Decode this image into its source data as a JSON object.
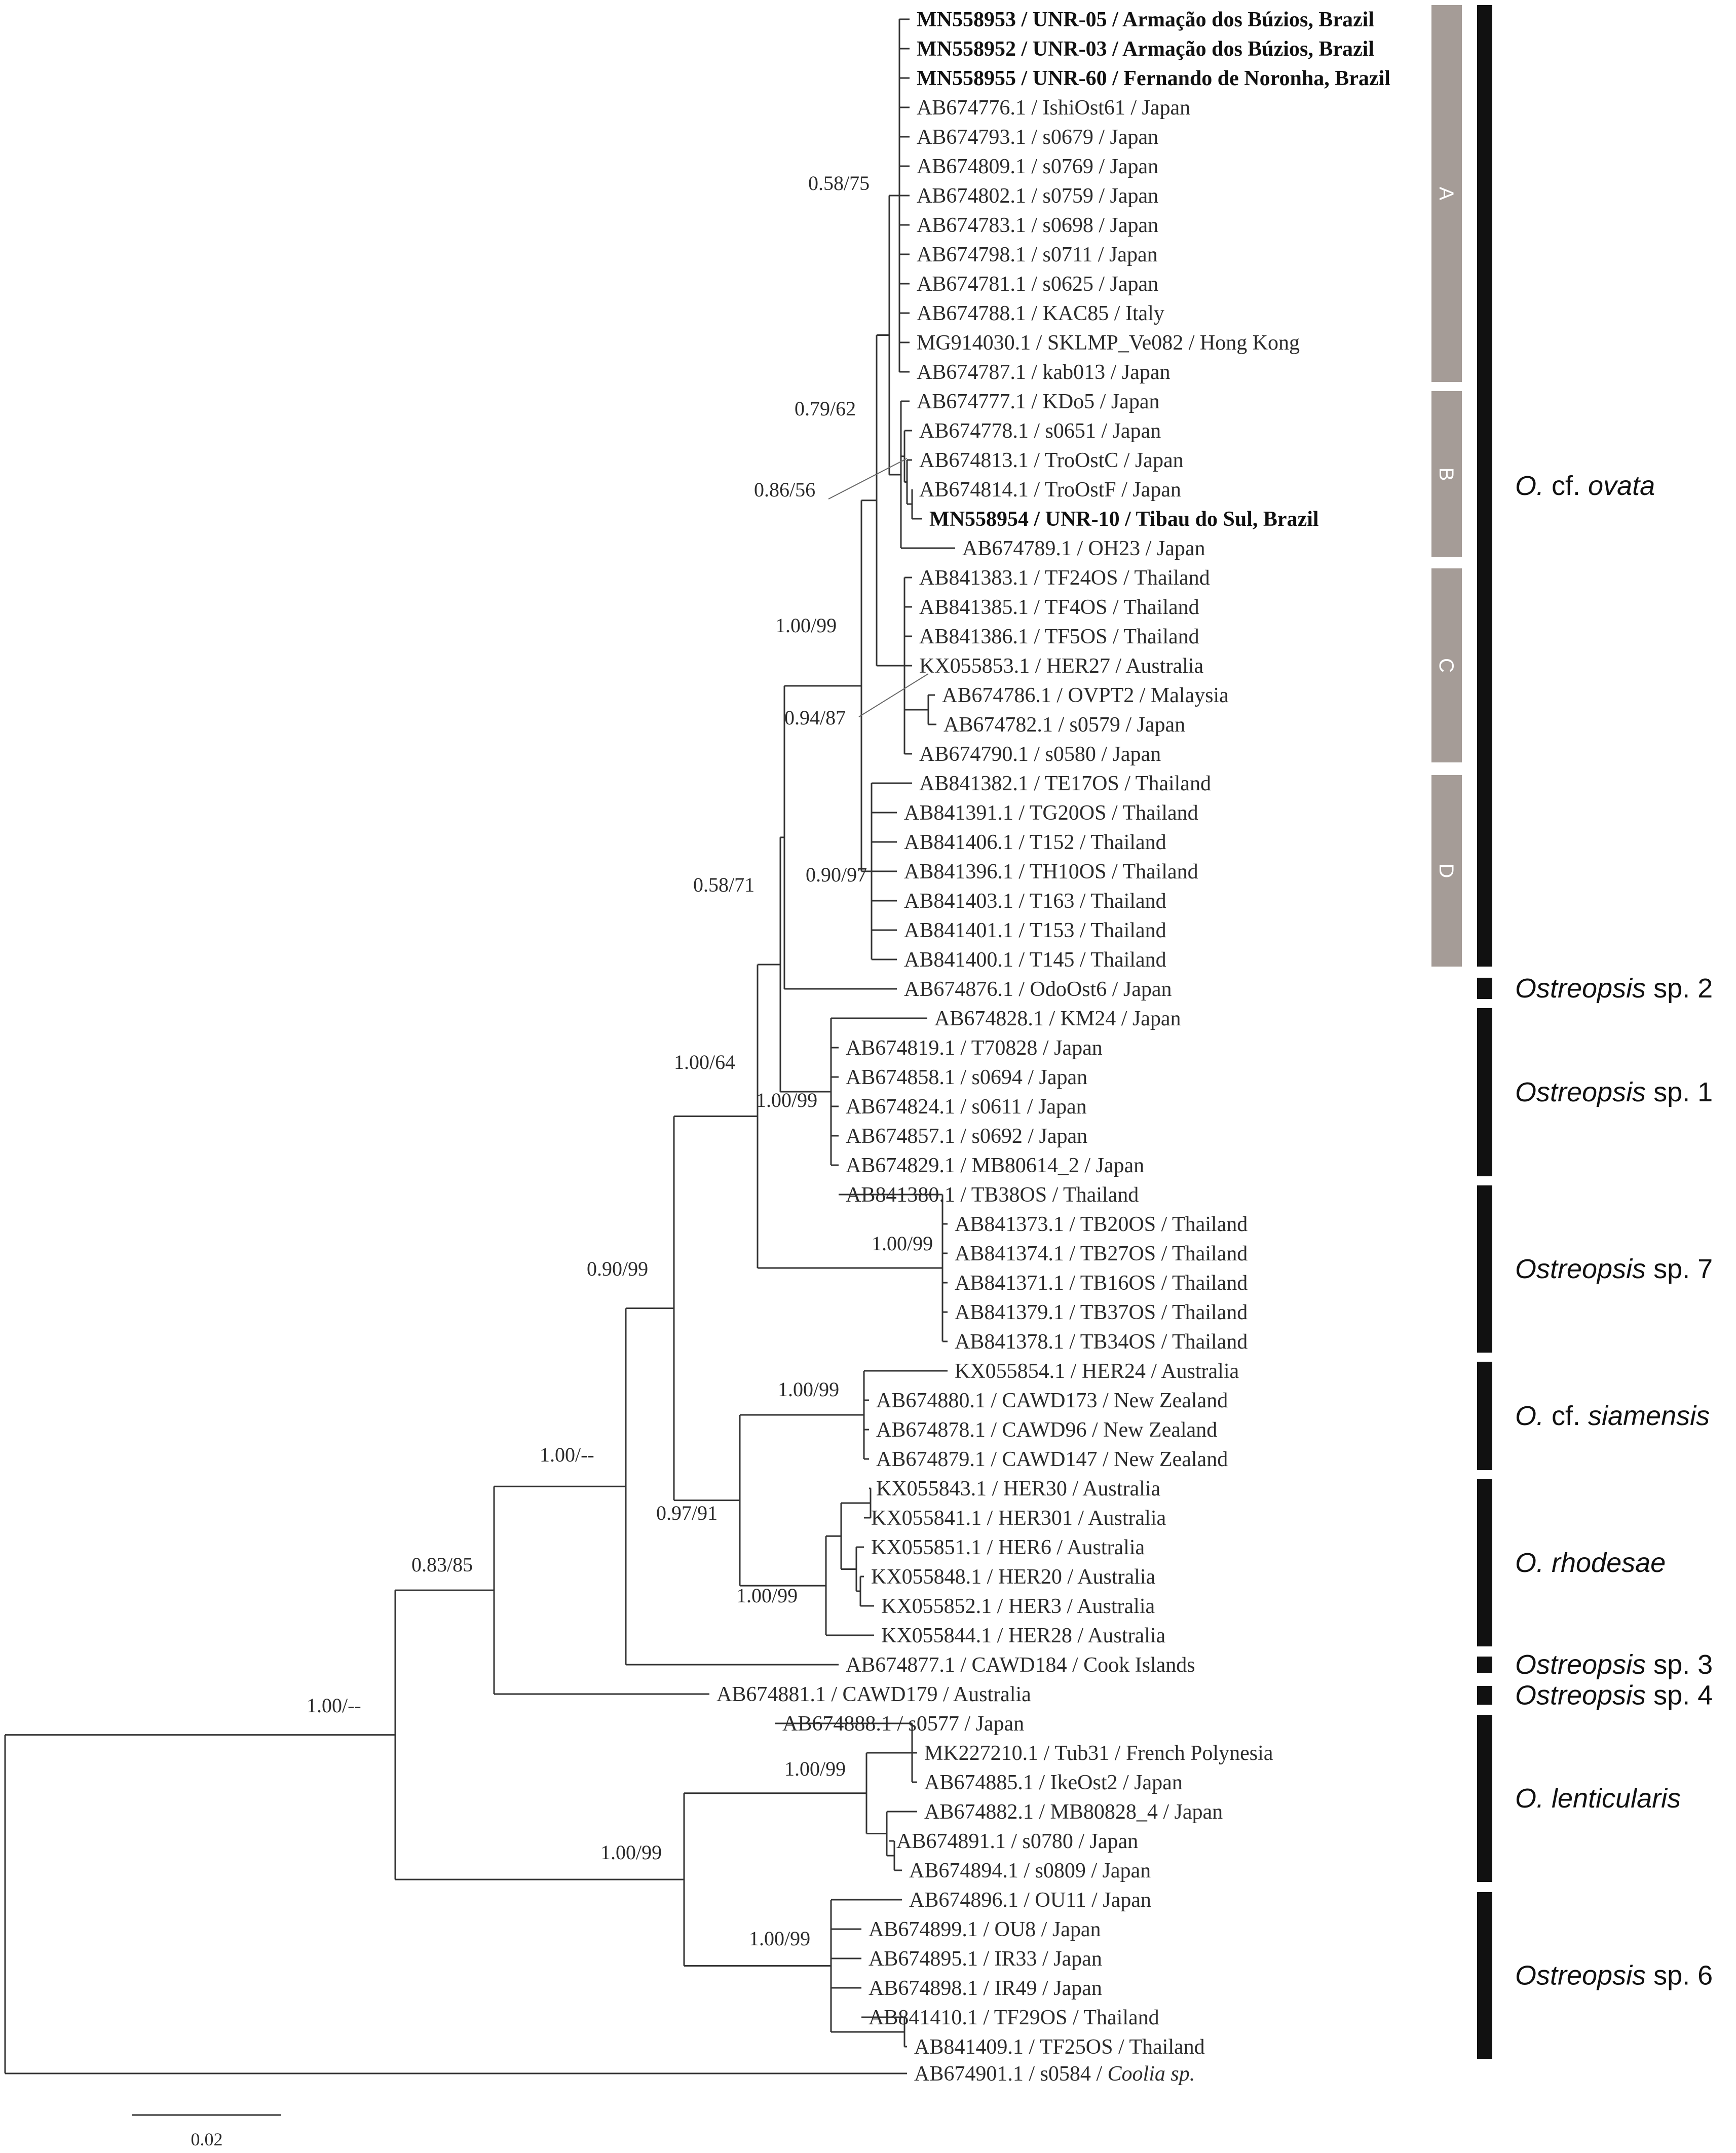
{
  "figure": {
    "scale_bar_label": "0.02",
    "leaves": [
      {
        "id": "L1",
        "acc": "MN558953",
        "strain": "UNR-05",
        "origin": "Armação dos Búzios, Brazil",
        "bold": true
      },
      {
        "id": "L2",
        "acc": "MN558952",
        "strain": "UNR-03",
        "origin": "Armação dos Búzios, Brazil",
        "bold": true
      },
      {
        "id": "L3",
        "acc": "MN558955",
        "strain": "UNR-60",
        "origin": "Fernando de Noronha, Brazil",
        "bold": true
      },
      {
        "id": "L4",
        "acc": "AB674776.1",
        "strain": "IshiOst61",
        "origin": "Japan"
      },
      {
        "id": "L5",
        "acc": "AB674793.1",
        "strain": "s0679",
        "origin": "Japan"
      },
      {
        "id": "L6",
        "acc": "AB674809.1",
        "strain": "s0769",
        "origin": "Japan"
      },
      {
        "id": "L7",
        "acc": "AB674802.1",
        "strain": "s0759",
        "origin": "Japan"
      },
      {
        "id": "L8",
        "acc": "AB674783.1",
        "strain": "s0698",
        "origin": "Japan"
      },
      {
        "id": "L9",
        "acc": "AB674798.1",
        "strain": "s0711",
        "origin": "Japan"
      },
      {
        "id": "L10",
        "acc": "AB674781.1",
        "strain": "s0625",
        "origin": "Japan"
      },
      {
        "id": "L11",
        "acc": "AB674788.1",
        "strain": "KAC85",
        "origin": "Italy"
      },
      {
        "id": "L12",
        "acc": "MG914030.1",
        "strain": "SKLMP_Ve082",
        "origin": "Hong Kong"
      },
      {
        "id": "L13",
        "acc": "AB674787.1",
        "strain": "kab013",
        "origin": "Japan"
      },
      {
        "id": "L14",
        "acc": "AB674777.1",
        "strain": "KDo5",
        "origin": "Japan"
      },
      {
        "id": "L15",
        "acc": "AB674778.1",
        "strain": "s0651",
        "origin": "Japan"
      },
      {
        "id": "L16",
        "acc": "AB674813.1",
        "strain": "TroOstC",
        "origin": "Japan"
      },
      {
        "id": "L17",
        "acc": "AB674814.1",
        "strain": "TroOstF",
        "origin": "Japan"
      },
      {
        "id": "L18",
        "acc": "MN558954",
        "strain": "UNR-10",
        "origin": "Tibau do Sul, Brazil",
        "bold": true
      },
      {
        "id": "L19",
        "acc": "AB674789.1",
        "strain": "OH23",
        "origin": "Japan"
      },
      {
        "id": "L20",
        "acc": "AB841383.1",
        "strain": "TF24OS",
        "origin": "Thailand"
      },
      {
        "id": "L21",
        "acc": "AB841385.1",
        "strain": "TF4OS",
        "origin": "Thailand"
      },
      {
        "id": "L22",
        "acc": "AB841386.1",
        "strain": "TF5OS",
        "origin": "Thailand"
      },
      {
        "id": "L23",
        "acc": "KX055853.1",
        "strain": "HER27",
        "origin": "Australia"
      },
      {
        "id": "L24",
        "acc": "AB674786.1",
        "strain": "OVPT2",
        "origin": "Malaysia"
      },
      {
        "id": "L25",
        "acc": "AB674782.1",
        "strain": "s0579",
        "origin": "Japan"
      },
      {
        "id": "L26",
        "acc": "AB674790.1",
        "strain": "s0580",
        "origin": "Japan"
      },
      {
        "id": "L27",
        "acc": "AB841382.1",
        "strain": "TE17OS",
        "origin": "Thailand"
      },
      {
        "id": "L28",
        "acc": "AB841391.1",
        "strain": "TG20OS",
        "origin": "Thailand"
      },
      {
        "id": "L29",
        "acc": "AB841406.1",
        "strain": "T152",
        "origin": "Thailand"
      },
      {
        "id": "L30",
        "acc": "AB841396.1",
        "strain": "TH10OS",
        "origin": "Thailand"
      },
      {
        "id": "L31",
        "acc": "AB841403.1",
        "strain": "T163",
        "origin": "Thailand"
      },
      {
        "id": "L32",
        "acc": "AB841401.1",
        "strain": "T153",
        "origin": "Thailand"
      },
      {
        "id": "L33",
        "acc": "AB841400.1",
        "strain": "T145",
        "origin": "Thailand"
      },
      {
        "id": "L34",
        "acc": "AB674876.1",
        "strain": "OdoOst6",
        "origin": "Japan"
      },
      {
        "id": "L35",
        "acc": "AB674828.1",
        "strain": "KM24",
        "origin": "Japan"
      },
      {
        "id": "L36",
        "acc": "AB674819.1",
        "strain": "T70828",
        "origin": "Japan"
      },
      {
        "id": "L37",
        "acc": "AB674858.1",
        "strain": "s0694",
        "origin": "Japan"
      },
      {
        "id": "L38",
        "acc": "AB674824.1",
        "strain": "s0611",
        "origin": "Japan"
      },
      {
        "id": "L39",
        "acc": "AB674857.1",
        "strain": "s0692",
        "origin": "Japan"
      },
      {
        "id": "L40",
        "acc": "AB674829.1",
        "strain": "MB80614_2",
        "origin": "Japan"
      },
      {
        "id": "L41",
        "acc": "AB841380.1",
        "strain": "TB38OS",
        "origin": "Thailand"
      },
      {
        "id": "L42",
        "acc": "AB841373.1",
        "strain": "TB20OS",
        "origin": "Thailand"
      },
      {
        "id": "L43",
        "acc": "AB841374.1",
        "strain": "TB27OS",
        "origin": "Thailand"
      },
      {
        "id": "L44",
        "acc": "AB841371.1",
        "strain": "TB16OS",
        "origin": "Thailand"
      },
      {
        "id": "L45",
        "acc": "AB841379.1",
        "strain": "TB37OS",
        "origin": "Thailand"
      },
      {
        "id": "L46",
        "acc": "AB841378.1",
        "strain": "TB34OS",
        "origin": "Thailand"
      },
      {
        "id": "L47",
        "acc": "KX055854.1",
        "strain": "HER24",
        "origin": "Australia"
      },
      {
        "id": "L48",
        "acc": "AB674880.1",
        "strain": "CAWD173",
        "origin": "New Zealand"
      },
      {
        "id": "L49",
        "acc": "AB674878.1",
        "strain": "CAWD96",
        "origin": "New Zealand"
      },
      {
        "id": "L50",
        "acc": "AB674879.1",
        "strain": "CAWD147",
        "origin": "New Zealand"
      },
      {
        "id": "L51",
        "acc": "KX055843.1",
        "strain": "HER30",
        "origin": "Australia"
      },
      {
        "id": "L52",
        "acc": "KX055841.1",
        "strain": "HER301",
        "origin": "Australia"
      },
      {
        "id": "L53",
        "acc": "KX055851.1",
        "strain": "HER6",
        "origin": "Australia"
      },
      {
        "id": "L54",
        "acc": "KX055848.1",
        "strain": "HER20",
        "origin": "Australia"
      },
      {
        "id": "L55",
        "acc": "KX055852.1",
        "strain": "HER3",
        "origin": "Australia"
      },
      {
        "id": "L56",
        "acc": "KX055844.1",
        "strain": "HER28",
        "origin": "Australia"
      },
      {
        "id": "L57",
        "acc": "AB674877.1",
        "strain": "CAWD184",
        "origin": "Cook Islands"
      },
      {
        "id": "L58",
        "acc": "AB674881.1",
        "strain": "CAWD179",
        "origin": "Australia"
      },
      {
        "id": "L59",
        "acc": "AB674888.1",
        "strain": "s0577",
        "origin": "Japan"
      },
      {
        "id": "L60",
        "acc": "MK227210.1",
        "strain": "Tub31",
        "origin": "French Polynesia"
      },
      {
        "id": "L61",
        "acc": "AB674885.1",
        "strain": "IkeOst2",
        "origin": "Japan"
      },
      {
        "id": "L62",
        "acc": "AB674882.1",
        "strain": "MB80828_4",
        "origin": "Japan"
      },
      {
        "id": "L63",
        "acc": "AB674891.1",
        "strain": "s0780",
        "origin": "Japan"
      },
      {
        "id": "L64",
        "acc": "AB674894.1",
        "strain": "s0809",
        "origin": "Japan"
      },
      {
        "id": "L65",
        "acc": "AB674896.1",
        "strain": "OU11",
        "origin": "Japan"
      },
      {
        "id": "L66",
        "acc": "AB674899.1",
        "strain": "OU8",
        "origin": "Japan"
      },
      {
        "id": "L67",
        "acc": "AB674895.1",
        "strain": "IR33",
        "origin": "Japan"
      },
      {
        "id": "L68",
        "acc": "AB674898.1",
        "strain": "IR49",
        "origin": "Japan"
      },
      {
        "id": "L69",
        "acc": "AB841410.1",
        "strain": "TF29OS",
        "origin": "Thailand"
      },
      {
        "id": "L70",
        "acc": "AB841409.1",
        "strain": "TF25OS",
        "origin": "Thailand"
      },
      {
        "id": "L71",
        "acc": "AB674901.1",
        "strain": "s0584",
        "origin": "Coolia sp.",
        "origin_italic": true
      }
    ],
    "support_values": [
      {
        "id": "n_A",
        "text": "0.58/75"
      },
      {
        "id": "n_AB",
        "text": "0.79/62"
      },
      {
        "id": "n_B",
        "text": "0.86/56"
      },
      {
        "id": "n_ovata",
        "text": "1.00/99"
      },
      {
        "id": "n_C",
        "text": "0.94/87"
      },
      {
        "id": "n_D",
        "text": "0.90/97"
      },
      {
        "id": "n_ov_sp2_sp1",
        "text": "0.58/71"
      },
      {
        "id": "n_with_sp7",
        "text": "1.00/64"
      },
      {
        "id": "n_sp1",
        "text": "1.00/99"
      },
      {
        "id": "n_sp7",
        "text": "1.00/99"
      },
      {
        "id": "n_big1",
        "text": "0.90/99"
      },
      {
        "id": "n_siam",
        "text": "1.00/99"
      },
      {
        "id": "n_sprh",
        "text": "0.97/91"
      },
      {
        "id": "n_rhod",
        "text": "1.00/99"
      },
      {
        "id": "n_sp3",
        "text": "1.00/--"
      },
      {
        "id": "n_sp4",
        "text": "0.83/85"
      },
      {
        "id": "n_root",
        "text": "1.00/--"
      },
      {
        "id": "n_lentsp6",
        "text": "1.00/99"
      },
      {
        "id": "n_lent",
        "text": "1.00/99"
      },
      {
        "id": "n_sp6",
        "text": "1.00/99"
      }
    ],
    "subclades": [
      {
        "id": "A",
        "label": "A"
      },
      {
        "id": "B",
        "label": "B"
      },
      {
        "id": "C",
        "label": "C"
      },
      {
        "id": "D",
        "label": "D"
      }
    ],
    "clades": [
      {
        "id": "ovata",
        "label": "O. cf. ovata"
      },
      {
        "id": "sp2",
        "label": "Ostreopsis sp. 2"
      },
      {
        "id": "sp1",
        "label": "Ostreopsis sp. 1"
      },
      {
        "id": "sp7",
        "label": "Ostreopsis sp. 7"
      },
      {
        "id": "siamensis",
        "label": "O. cf. siamensis"
      },
      {
        "id": "rhodesae",
        "label": "O. rhodesae"
      },
      {
        "id": "sp3",
        "label": "Ostreopsis sp. 3"
      },
      {
        "id": "sp4",
        "label": "Ostreopsis sp. 4"
      },
      {
        "id": "lenticularis",
        "label": "O. lenticularis"
      },
      {
        "id": "sp6",
        "label": "Ostreopsis sp. 6"
      }
    ]
  }
}
